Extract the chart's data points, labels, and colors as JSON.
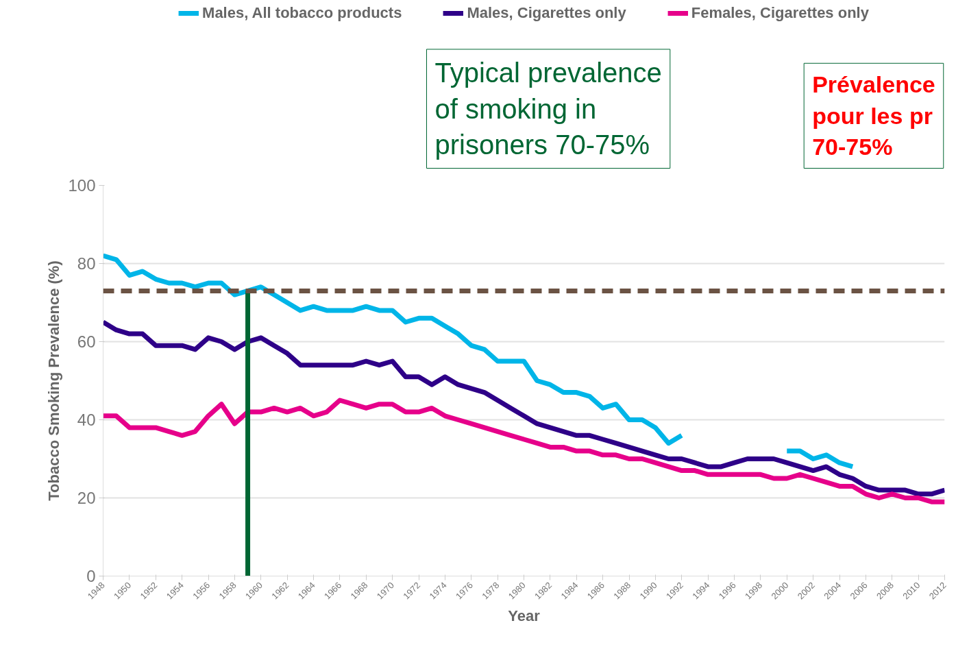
{
  "chart_data": {
    "type": "line",
    "xlabel": "Year",
    "ylabel": "Tobacco Smoking Prevalence (%)",
    "x": [
      1948,
      1949,
      1950,
      1951,
      1952,
      1953,
      1954,
      1955,
      1956,
      1957,
      1958,
      1959,
      1960,
      1961,
      1962,
      1963,
      1964,
      1965,
      1966,
      1967,
      1968,
      1969,
      1970,
      1971,
      1972,
      1973,
      1974,
      1975,
      1976,
      1977,
      1978,
      1979,
      1980,
      1981,
      1982,
      1983,
      1984,
      1985,
      1986,
      1987,
      1988,
      1989,
      1990,
      1991,
      1992,
      1993,
      1994,
      1995,
      1996,
      1997,
      1998,
      1999,
      2000,
      2001,
      2002,
      2003,
      2004,
      2005,
      2006,
      2007,
      2008,
      2009,
      2010,
      2011,
      2012
    ],
    "series": [
      {
        "name": "Males, All tobacco products",
        "color": "#00b5e8",
        "values": [
          82,
          81,
          77,
          78,
          76,
          75,
          75,
          74,
          75,
          75,
          72,
          73,
          74,
          72,
          70,
          68,
          69,
          68,
          68,
          68,
          69,
          68,
          68,
          65,
          66,
          66,
          64,
          62,
          59,
          58,
          55,
          55,
          55,
          50,
          49,
          47,
          47,
          46,
          43,
          44,
          40,
          40,
          38,
          34,
          36,
          null,
          null,
          null,
          null,
          null,
          null,
          null,
          32,
          32,
          30,
          31,
          29,
          28,
          null,
          null,
          null,
          null,
          null,
          null,
          null
        ]
      },
      {
        "name": "Males, Cigarettes only",
        "color": "#2e0088",
        "values": [
          65,
          63,
          62,
          62,
          59,
          59,
          59,
          58,
          61,
          60,
          58,
          60,
          61,
          59,
          57,
          54,
          54,
          54,
          54,
          54,
          55,
          54,
          55,
          51,
          51,
          49,
          51,
          49,
          48,
          47,
          45,
          43,
          41,
          39,
          38,
          37,
          36,
          36,
          35,
          34,
          33,
          32,
          31,
          30,
          30,
          29,
          28,
          28,
          29,
          30,
          30,
          30,
          29,
          28,
          27,
          28,
          26,
          25,
          23,
          22,
          22,
          22,
          21,
          21,
          22
        ]
      },
      {
        "name": "Females, Cigarettes only",
        "color": "#e6008a",
        "values": [
          41,
          41,
          38,
          38,
          38,
          37,
          36,
          37,
          41,
          44,
          39,
          42,
          42,
          43,
          42,
          43,
          41,
          42,
          45,
          44,
          43,
          44,
          44,
          42,
          42,
          43,
          41,
          40,
          39,
          38,
          37,
          36,
          35,
          34,
          33,
          33,
          32,
          32,
          31,
          31,
          30,
          30,
          29,
          28,
          27,
          27,
          26,
          26,
          26,
          26,
          26,
          25,
          25,
          26,
          25,
          24,
          23,
          23,
          21,
          20,
          21,
          20,
          20,
          19,
          19
        ]
      },
      {
        "type": "line",
        "x": [
          1959,
          1959
        ],
        "color": "#006633",
        "values": [
          0,
          73
        ]
      }
    ],
    "ref_lines": [
      {
        "axis": "y",
        "value": 73,
        "color": "#6b5344",
        "line_style": "dashed"
      }
    ],
    "annotations": [
      "Typical prevalence\nof smoking in\nprisoners 70-75%",
      "Prévalence\npour les pr\n70-75%"
    ],
    "xlim": [
      1948,
      2012
    ],
    "xticks": [
      1948,
      1950,
      1952,
      1954,
      1956,
      1958,
      1960,
      1962,
      1964,
      1966,
      1968,
      1970,
      1972,
      1974,
      1976,
      1978,
      1980,
      1982,
      1984,
      1986,
      1988,
      1990,
      1992,
      1994,
      1996,
      1998,
      2000,
      2002,
      2004,
      2006,
      2008,
      2010,
      2012
    ],
    "ylim": [
      0,
      100
    ],
    "yticks": [
      0,
      20,
      40,
      60,
      80,
      100
    ],
    "grid": "y",
    "legend": "top",
    "marker": "none",
    "line_style": "solid"
  }
}
